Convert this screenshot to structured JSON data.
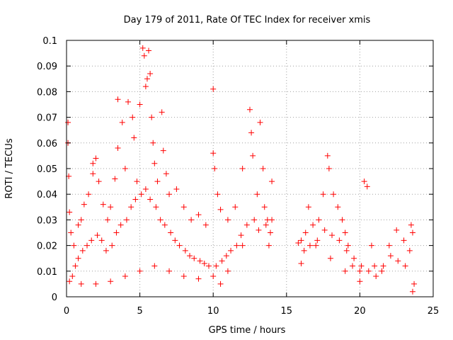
{
  "chart_data": {
    "type": "scatter",
    "title": "Day 179 of 2011, Rate Of TEC Index for receiver xmis",
    "xlabel": "GPS time / hours",
    "ylabel": "ROTI / TECUs",
    "xlim": [
      0,
      25
    ],
    "ylim": [
      0,
      0.1
    ],
    "xticks": [
      "0",
      "5",
      "10",
      "15",
      "20",
      "25"
    ],
    "yticks": [
      "0",
      "0.01",
      "0.02",
      "0.03",
      "0.04",
      "0.05",
      "0.06",
      "0.07",
      "0.08",
      "0.09",
      "0.1"
    ],
    "grid": true,
    "marker": "+",
    "color": "#ff0000",
    "series": [
      {
        "points": [
          [
            0.1,
            0.068
          ],
          [
            0.1,
            0.06
          ],
          [
            0.15,
            0.047
          ],
          [
            0.2,
            0.033
          ],
          [
            0.3,
            0.025
          ],
          [
            0.5,
            0.02
          ],
          [
            0.8,
            0.028
          ],
          [
            1.0,
            0.03
          ],
          [
            1.2,
            0.036
          ],
          [
            1.5,
            0.04
          ],
          [
            1.8,
            0.048
          ],
          [
            1.8,
            0.052
          ],
          [
            2.0,
            0.054
          ],
          [
            2.2,
            0.045
          ],
          [
            2.5,
            0.036
          ],
          [
            2.8,
            0.03
          ],
          [
            3.0,
            0.035
          ],
          [
            3.3,
            0.046
          ],
          [
            3.5,
            0.077
          ],
          [
            3.5,
            0.058
          ],
          [
            3.8,
            0.068
          ],
          [
            4.0,
            0.05
          ],
          [
            4.2,
            0.076
          ],
          [
            4.5,
            0.07
          ],
          [
            4.6,
            0.062
          ],
          [
            4.8,
            0.045
          ],
          [
            5.0,
            0.075
          ],
          [
            5.2,
            0.097
          ],
          [
            5.3,
            0.094
          ],
          [
            5.4,
            0.082
          ],
          [
            5.5,
            0.085
          ],
          [
            5.6,
            0.096
          ],
          [
            5.7,
            0.087
          ],
          [
            5.8,
            0.07
          ],
          [
            5.9,
            0.06
          ],
          [
            6.0,
            0.052
          ],
          [
            6.2,
            0.045
          ],
          [
            6.5,
            0.072
          ],
          [
            6.6,
            0.057
          ],
          [
            6.8,
            0.048
          ],
          [
            7.0,
            0.04
          ],
          [
            7.5,
            0.042
          ],
          [
            8.0,
            0.035
          ],
          [
            8.5,
            0.03
          ],
          [
            9.0,
            0.032
          ],
          [
            9.5,
            0.028
          ],
          [
            10.0,
            0.081
          ],
          [
            10.0,
            0.056
          ],
          [
            10.1,
            0.05
          ],
          [
            10.3,
            0.04
          ],
          [
            10.5,
            0.034
          ],
          [
            11.0,
            0.03
          ],
          [
            11.5,
            0.035
          ],
          [
            12.0,
            0.05
          ],
          [
            12.5,
            0.073
          ],
          [
            12.6,
            0.064
          ],
          [
            12.7,
            0.055
          ],
          [
            13.0,
            0.04
          ],
          [
            13.2,
            0.068
          ],
          [
            13.4,
            0.05
          ],
          [
            13.5,
            0.035
          ],
          [
            13.7,
            0.03
          ],
          [
            14.0,
            0.045
          ],
          [
            14.0,
            0.03
          ],
          [
            16.0,
            0.022
          ],
          [
            16.3,
            0.025
          ],
          [
            16.5,
            0.035
          ],
          [
            16.8,
            0.028
          ],
          [
            17.2,
            0.03
          ],
          [
            17.5,
            0.04
          ],
          [
            17.8,
            0.055
          ],
          [
            17.9,
            0.05
          ],
          [
            18.2,
            0.04
          ],
          [
            18.5,
            0.035
          ],
          [
            18.8,
            0.03
          ],
          [
            19.0,
            0.025
          ],
          [
            19.2,
            0.02
          ],
          [
            19.5,
            0.012
          ],
          [
            20.0,
            0.01
          ],
          [
            20.3,
            0.045
          ],
          [
            20.5,
            0.043
          ],
          [
            20.8,
            0.02
          ],
          [
            21.0,
            0.012
          ],
          [
            21.5,
            0.01
          ],
          [
            22.0,
            0.02
          ],
          [
            22.5,
            0.026
          ],
          [
            23.0,
            0.022
          ],
          [
            23.5,
            0.028
          ],
          [
            23.6,
            0.025
          ],
          [
            23.7,
            0.005
          ],
          [
            23.6,
            0.002
          ],
          [
            20.0,
            0.006
          ],
          [
            19.0,
            0.01
          ],
          [
            18.0,
            0.015
          ],
          [
            17.0,
            0.02
          ],
          [
            16.0,
            0.013
          ],
          [
            15.8,
            0.021
          ],
          [
            13.8,
            0.02
          ],
          [
            13.9,
            0.025
          ],
          [
            12.0,
            0.02
          ],
          [
            11.0,
            0.01
          ],
          [
            10.5,
            0.005
          ],
          [
            10.0,
            0.008
          ],
          [
            9.0,
            0.007
          ],
          [
            8.0,
            0.008
          ],
          [
            7.0,
            0.01
          ],
          [
            6.0,
            0.012
          ],
          [
            5.0,
            0.01
          ],
          [
            4.0,
            0.008
          ],
          [
            3.0,
            0.006
          ],
          [
            2.0,
            0.005
          ],
          [
            1.0,
            0.005
          ],
          [
            0.2,
            0.006
          ],
          [
            0.4,
            0.008
          ],
          [
            0.6,
            0.012
          ],
          [
            0.8,
            0.015
          ],
          [
            1.1,
            0.018
          ],
          [
            1.4,
            0.02
          ],
          [
            1.7,
            0.022
          ],
          [
            2.1,
            0.024
          ],
          [
            2.4,
            0.022
          ],
          [
            2.7,
            0.018
          ],
          [
            3.1,
            0.02
          ],
          [
            3.4,
            0.025
          ],
          [
            3.7,
            0.028
          ],
          [
            4.1,
            0.03
          ],
          [
            4.4,
            0.035
          ],
          [
            4.7,
            0.038
          ],
          [
            5.1,
            0.04
          ],
          [
            5.4,
            0.042
          ],
          [
            5.7,
            0.038
          ],
          [
            6.1,
            0.035
          ],
          [
            6.4,
            0.03
          ],
          [
            6.7,
            0.028
          ],
          [
            7.1,
            0.025
          ],
          [
            7.4,
            0.022
          ],
          [
            7.7,
            0.02
          ],
          [
            8.1,
            0.018
          ],
          [
            8.4,
            0.016
          ],
          [
            8.7,
            0.015
          ],
          [
            9.1,
            0.014
          ],
          [
            9.4,
            0.013
          ],
          [
            9.7,
            0.012
          ],
          [
            10.2,
            0.012
          ],
          [
            10.6,
            0.014
          ],
          [
            10.9,
            0.016
          ],
          [
            11.2,
            0.018
          ],
          [
            11.6,
            0.02
          ],
          [
            11.9,
            0.024
          ],
          [
            12.3,
            0.028
          ],
          [
            12.8,
            0.03
          ],
          [
            13.1,
            0.026
          ],
          [
            13.6,
            0.028
          ],
          [
            16.2,
            0.018
          ],
          [
            16.6,
            0.02
          ],
          [
            17.1,
            0.022
          ],
          [
            17.6,
            0.026
          ],
          [
            18.1,
            0.024
          ],
          [
            18.6,
            0.022
          ],
          [
            19.1,
            0.018
          ],
          [
            19.6,
            0.015
          ],
          [
            20.1,
            0.012
          ],
          [
            20.6,
            0.01
          ],
          [
            21.1,
            0.008
          ],
          [
            21.6,
            0.012
          ],
          [
            22.1,
            0.016
          ],
          [
            22.6,
            0.014
          ],
          [
            23.1,
            0.012
          ],
          [
            23.4,
            0.018
          ]
        ]
      }
    ]
  }
}
